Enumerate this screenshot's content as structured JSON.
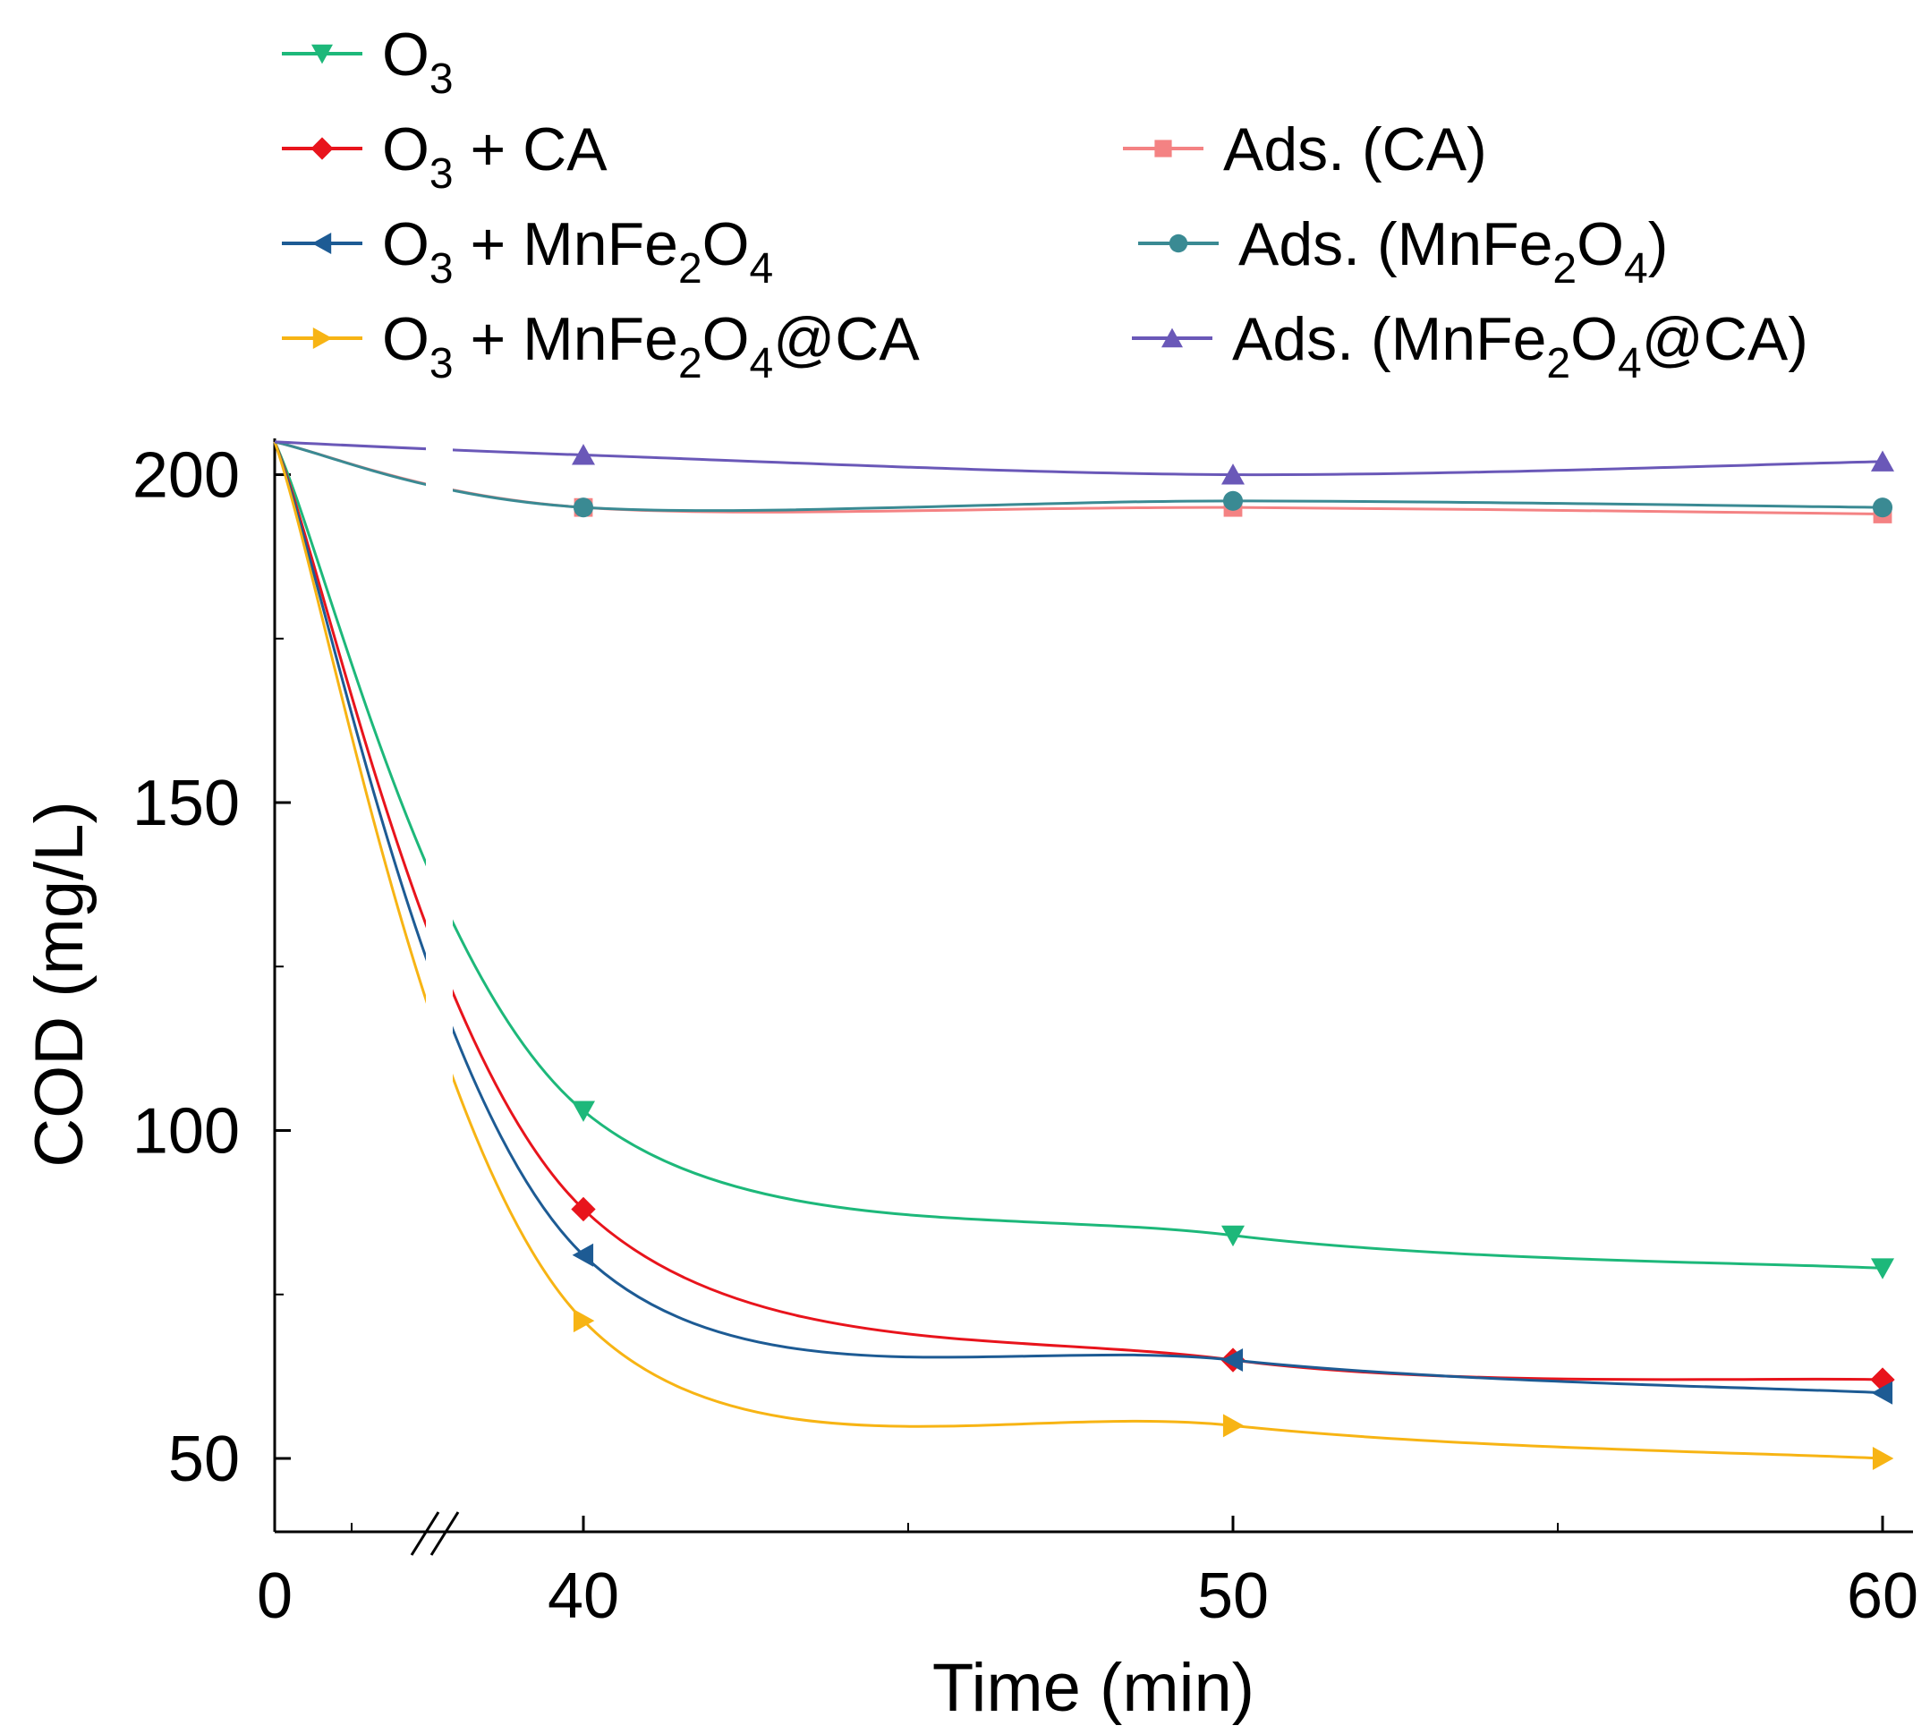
{
  "chart_data": {
    "type": "line",
    "xlabel": "Time (min)",
    "ylabel": "COD (mg/L)",
    "x_ticks": [
      "0",
      "40",
      "50",
      "60"
    ],
    "y_ticks": [
      "200",
      "150",
      "100",
      "50"
    ],
    "ylim": [
      40,
      210
    ],
    "x_break": "axis break between 0 and 40 min",
    "legend_position": "top",
    "series": [
      {
        "key": "o3",
        "name": "O3",
        "label": [
          {
            "t": "O"
          },
          {
            "t": "3",
            "sub": true
          }
        ],
        "color": "#1db87a",
        "marker": "triangle-down",
        "x": [
          0,
          40,
          50,
          60
        ],
        "y": [
          205,
          103,
          84,
          79
        ]
      },
      {
        "key": "o3ca",
        "name": "O3 + CA",
        "label": [
          {
            "t": "O"
          },
          {
            "t": "3",
            "sub": true
          },
          {
            "t": " + CA"
          }
        ],
        "color": "#e8141c",
        "marker": "diamond",
        "x": [
          0,
          40,
          50,
          60
        ],
        "y": [
          205,
          88,
          65,
          62
        ]
      },
      {
        "key": "o3mn",
        "name": "O3 + MnFe2O4",
        "label": [
          {
            "t": "O"
          },
          {
            "t": "3",
            "sub": true
          },
          {
            "t": " + MnFe"
          },
          {
            "t": "2",
            "sub": true
          },
          {
            "t": "O"
          },
          {
            "t": "4",
            "sub": true
          }
        ],
        "color": "#1d5b94",
        "marker": "triangle-left",
        "x": [
          0,
          40,
          50,
          60
        ],
        "y": [
          205,
          81,
          65,
          60
        ]
      },
      {
        "key": "o3mnca",
        "name": "O3 + MnFe2O4@CA",
        "label": [
          {
            "t": "O"
          },
          {
            "t": "3",
            "sub": true
          },
          {
            "t": " + MnFe"
          },
          {
            "t": "2",
            "sub": true
          },
          {
            "t": "O"
          },
          {
            "t": "4",
            "sub": true
          },
          {
            "t": "@CA"
          }
        ],
        "color": "#f7b414",
        "marker": "triangle-right",
        "x": [
          0,
          40,
          50,
          60
        ],
        "y": [
          205,
          71,
          55,
          50
        ]
      },
      {
        "key": "adsca",
        "name": "Ads. (CA)",
        "label": [
          {
            "t": "Ads. (CA)"
          }
        ],
        "color": "#f48283",
        "marker": "square",
        "x": [
          0,
          40,
          50,
          60
        ],
        "y": [
          205,
          195,
          195,
          194
        ]
      },
      {
        "key": "adsmn",
        "name": "Ads. (MnFe2O4)",
        "label": [
          {
            "t": "Ads. (MnFe"
          },
          {
            "t": "2",
            "sub": true
          },
          {
            "t": "O"
          },
          {
            "t": "4",
            "sub": true
          },
          {
            "t": ")"
          }
        ],
        "color": "#3a8a93",
        "marker": "circle",
        "x": [
          0,
          40,
          50,
          60
        ],
        "y": [
          205,
          195,
          196,
          195
        ]
      },
      {
        "key": "adsmnca",
        "name": "Ads. (MnFe2O4@CA)",
        "label": [
          {
            "t": "Ads. (MnFe"
          },
          {
            "t": "2",
            "sub": true
          },
          {
            "t": "O"
          },
          {
            "t": "4",
            "sub": true
          },
          {
            "t": "@CA)"
          }
        ],
        "color": "#6a58b8",
        "marker": "triangle-up",
        "x": [
          0,
          40,
          50,
          60
        ],
        "y": [
          205,
          203,
          200,
          202
        ]
      }
    ]
  }
}
